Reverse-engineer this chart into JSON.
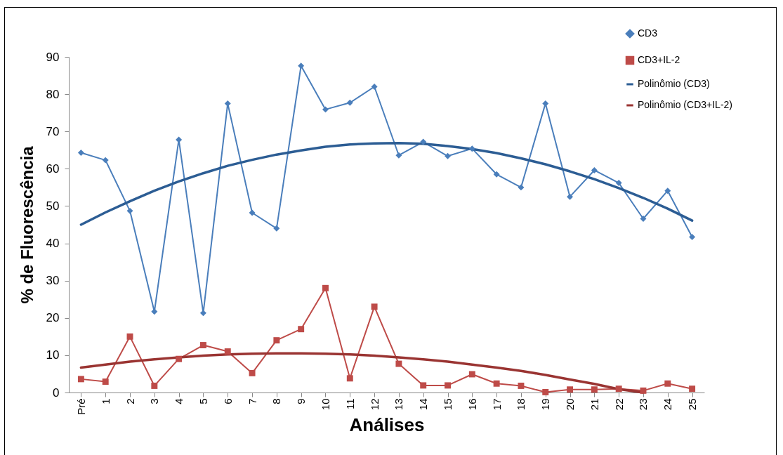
{
  "chart_data": {
    "type": "line",
    "xlabel": "Análises",
    "ylabel": "% de Fluorescência",
    "categories": [
      "Pré",
      "1",
      "2",
      "3",
      "4",
      "5",
      "6",
      "7",
      "8",
      "9",
      "10",
      "11",
      "12",
      "13",
      "14",
      "15",
      "16",
      "17",
      "18",
      "19",
      "20",
      "21",
      "22",
      "23",
      "24",
      "25"
    ],
    "ylim": [
      0,
      90
    ],
    "yticks": [
      0,
      10,
      20,
      30,
      40,
      50,
      60,
      70,
      80,
      90
    ],
    "grid": false,
    "legend": "top right",
    "series": [
      {
        "name": "CD3",
        "color": "#4a7ebb",
        "marker": "diamond",
        "values": [
          64.3,
          62.3,
          48.7,
          21.7,
          67.8,
          21.3,
          77.5,
          48.2,
          44,
          87.6,
          75.9,
          77.7,
          82,
          63.6,
          67.2,
          63.4,
          65.4,
          58.5,
          55,
          77.5,
          52.5,
          59.6,
          56.2,
          46.6,
          54.1,
          41.7
        ]
      },
      {
        "name": "CD3+IL-2",
        "color": "#be4b48",
        "marker": "square",
        "values": [
          3.6,
          2.9,
          15,
          1.8,
          9,
          12.7,
          11,
          5.2,
          14,
          17,
          28,
          3.8,
          23,
          7.7,
          1.9,
          1.9,
          4.9,
          2.4,
          1.8,
          0.1,
          0.8,
          0.8,
          1,
          0.5,
          2.4,
          1
        ]
      },
      {
        "name": "Polinômio (CD3)",
        "color": "#2c5d94",
        "marker": "none",
        "values": [
          45,
          48.3,
          51.3,
          54.1,
          56.6,
          58.8,
          60.8,
          62.4,
          63.8,
          64.9,
          65.9,
          66.5,
          66.8,
          66.9,
          66.7,
          66.1,
          65.3,
          64.2,
          62.8,
          61.2,
          59.3,
          57.2,
          54.8,
          52.2,
          49.3,
          46.1
        ]
      },
      {
        "name": "Polinômio (CD3+IL-2)",
        "color": "#9a3432",
        "marker": "none",
        "values": [
          6.7,
          7.5,
          8.3,
          8.9,
          9.4,
          9.9,
          10.2,
          10.4,
          10.5,
          10.5,
          10.4,
          10.2,
          9.9,
          9.4,
          8.9,
          8.3,
          7.5,
          6.7,
          5.8,
          4.7,
          3.5,
          2.3,
          0.9,
          0,
          null,
          null
        ]
      }
    ]
  }
}
